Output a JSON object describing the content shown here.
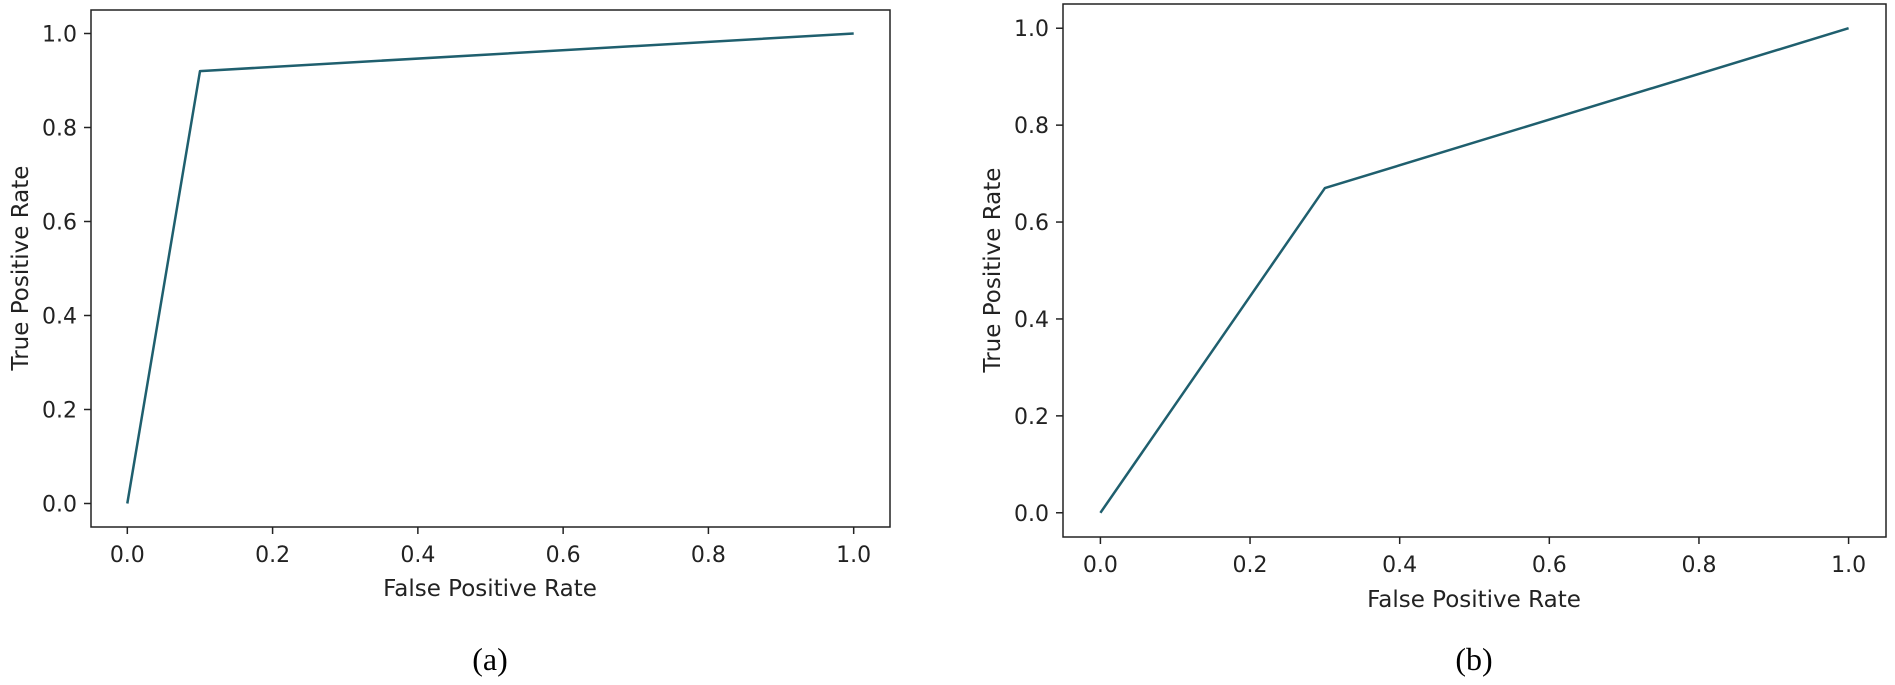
{
  "chart_data": [
    {
      "type": "line",
      "caption": "(a)",
      "xlabel": "False Positive Rate",
      "ylabel": "True Positive Rate",
      "xlim": [
        -0.05,
        1.05
      ],
      "ylim": [
        -0.05,
        1.05
      ],
      "xticks": [
        "0.0",
        "0.2",
        "0.4",
        "0.6",
        "0.8",
        "1.0"
      ],
      "yticks": [
        "0.0",
        "0.2",
        "0.4",
        "0.6",
        "0.8",
        "1.0"
      ],
      "grid": false,
      "color": "#1f5f6e",
      "series": [
        {
          "x": [
            0.0,
            0.1,
            1.0
          ],
          "y": [
            0.0,
            0.92,
            1.0
          ]
        }
      ]
    },
    {
      "type": "line",
      "caption": "(b)",
      "xlabel": "False Positive Rate",
      "ylabel": "True Positive Rate",
      "xlim": [
        -0.05,
        1.05
      ],
      "ylim": [
        -0.05,
        1.05
      ],
      "xticks": [
        "0.0",
        "0.2",
        "0.4",
        "0.6",
        "0.8",
        "1.0"
      ],
      "yticks": [
        "0.0",
        "0.2",
        "0.4",
        "0.6",
        "0.8",
        "1.0"
      ],
      "grid": false,
      "color": "#1f5f6e",
      "series": [
        {
          "x": [
            0.0,
            0.3,
            1.0
          ],
          "y": [
            0.0,
            0.67,
            1.0
          ]
        }
      ]
    }
  ]
}
